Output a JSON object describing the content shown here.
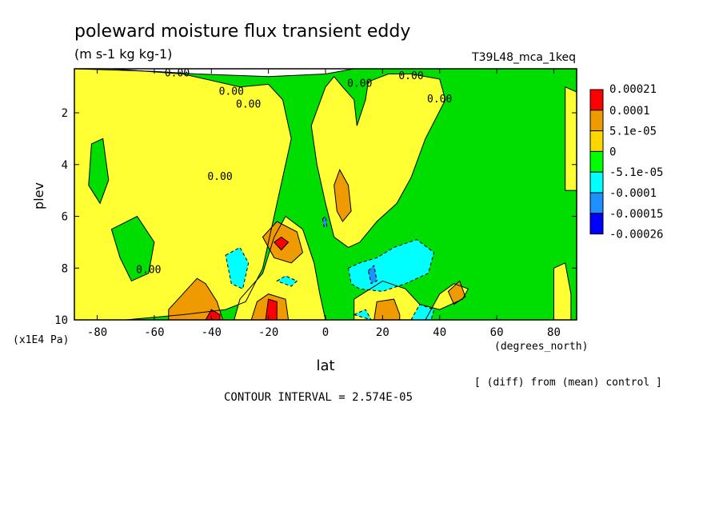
{
  "chart_data": {
    "type": "contour",
    "title": "poleward moisture flux transient eddy",
    "units": "(m s-1 kg kg-1)",
    "run_label": "T39L48_mca_1keq",
    "xlabel": "lat",
    "x_units": "(degrees_north)",
    "ylabel": "plev",
    "y_units": "(x1E4 Pa)",
    "x_ticks": [
      "-80",
      "-60",
      "-40",
      "-20",
      "0",
      "20",
      "40",
      "60",
      "80"
    ],
    "y_ticks": [
      "2",
      "4",
      "6",
      "8",
      "10"
    ],
    "xlim": [
      -88,
      88
    ],
    "ylim": [
      10,
      0.3
    ],
    "contour_interval_text": "CONTOUR INTERVAL = 2.574E-05",
    "note": "[ (diff) from (mean) control ]",
    "contour_labels": [
      "0.00",
      "0.00",
      "0.00",
      "0.00",
      "0.00",
      "0.00",
      "0.00",
      "0.00"
    ],
    "colorbar": {
      "labels": [
        "0.00021",
        "0.0001",
        "5.1e-05",
        "0",
        "-5.1e-05",
        "-0.0001",
        "-0.00015",
        "-0.00026"
      ],
      "colors": [
        "#ff0000",
        "#ee9a00",
        "#ffd700",
        "#00ff00",
        "#00ffff",
        "#1e90ff",
        "#0000ff"
      ]
    },
    "regions": [
      {
        "level": "green",
        "color": "#00dd00",
        "points": [
          [
            -88,
            0.3
          ],
          [
            -60,
            0.4
          ],
          [
            -45,
            0.5
          ],
          [
            -20,
            0.6
          ],
          [
            0,
            0.5
          ],
          [
            10,
            0.3
          ],
          [
            88,
            0.3
          ],
          [
            88,
            10
          ],
          [
            -88,
            10
          ]
        ]
      },
      {
        "level": "yellow",
        "color": "#ffff33",
        "points": [
          [
            -88,
            0.3
          ],
          [
            -75,
            0.3
          ],
          [
            -50,
            0.5
          ],
          [
            -30,
            1.0
          ],
          [
            -20,
            0.9
          ],
          [
            -15,
            1.5
          ],
          [
            -12,
            3
          ],
          [
            -16,
            5
          ],
          [
            -22,
            8
          ],
          [
            -28,
            9.3
          ],
          [
            -35,
            9.6
          ],
          [
            -50,
            9.8
          ],
          [
            -70,
            10
          ],
          [
            -88,
            10
          ]
        ]
      },
      {
        "level": "yellow",
        "color": "#ffff33",
        "points": [
          [
            -30,
            9.2
          ],
          [
            -22,
            8.2
          ],
          [
            -18,
            6.8
          ],
          [
            -14,
            6
          ],
          [
            -8,
            6.5
          ],
          [
            -4,
            7.8
          ],
          [
            -2,
            9
          ],
          [
            0,
            10
          ],
          [
            -32,
            10
          ]
        ]
      },
      {
        "level": "yellow",
        "color": "#ffff33",
        "points": [
          [
            -5,
            2.5
          ],
          [
            0,
            1
          ],
          [
            3,
            0.6
          ],
          [
            6,
            1
          ],
          [
            10,
            1.5
          ],
          [
            11,
            2.5
          ],
          [
            14,
            1.5
          ],
          [
            15,
            0.8
          ],
          [
            22,
            0.5
          ],
          [
            30,
            0.5
          ],
          [
            40,
            0.7
          ],
          [
            42,
            1.5
          ],
          [
            35,
            3
          ],
          [
            30,
            4.5
          ],
          [
            25,
            5.5
          ],
          [
            18,
            6.2
          ],
          [
            12,
            7
          ],
          [
            8,
            7.2
          ],
          [
            3,
            6.8
          ],
          [
            0,
            5.5
          ],
          [
            -3,
            4
          ]
        ]
      },
      {
        "level": "yellow",
        "color": "#ffff33",
        "points": [
          [
            10,
            9.2
          ],
          [
            20,
            8.5
          ],
          [
            28,
            8.8
          ],
          [
            33,
            9.4
          ],
          [
            40,
            9.6
          ],
          [
            48,
            9.2
          ],
          [
            50,
            8.8
          ],
          [
            45,
            8.6
          ],
          [
            40,
            9
          ],
          [
            35,
            10
          ],
          [
            10,
            10
          ]
        ]
      },
      {
        "level": "yellow",
        "color": "#ffff33",
        "points": [
          [
            80,
            8
          ],
          [
            84,
            7.8
          ],
          [
            86,
            9
          ],
          [
            86,
            10
          ],
          [
            80,
            10
          ]
        ]
      },
      {
        "level": "yellow",
        "color": "#ffff33",
        "points": [
          [
            84,
            1
          ],
          [
            88,
            1.2
          ],
          [
            88,
            5
          ],
          [
            84,
            5
          ]
        ]
      },
      {
        "level": "green",
        "color": "#00dd00",
        "points": [
          [
            -75,
            6.5
          ],
          [
            -66,
            6
          ],
          [
            -60,
            7
          ],
          [
            -62,
            8.2
          ],
          [
            -68,
            8.5
          ],
          [
            -72,
            7.6
          ]
        ]
      },
      {
        "level": "green",
        "color": "#00dd00",
        "points": [
          [
            -82,
            3.2
          ],
          [
            -78,
            3
          ],
          [
            -76,
            4.6
          ],
          [
            -79,
            5.5
          ],
          [
            -83,
            4.8
          ]
        ]
      },
      {
        "level": "orange",
        "color": "#ee9a00",
        "points": [
          [
            -55,
            9.6
          ],
          [
            -50,
            9
          ],
          [
            -45,
            8.4
          ],
          [
            -42,
            8.6
          ],
          [
            -38,
            9.3
          ],
          [
            -36,
            10
          ],
          [
            -55,
            10
          ]
        ]
      },
      {
        "level": "orange",
        "color": "#ee9a00",
        "points": [
          [
            -26,
            10
          ],
          [
            -24,
            9.3
          ],
          [
            -20,
            9
          ],
          [
            -14,
            9.2
          ],
          [
            -13,
            10
          ]
        ]
      },
      {
        "level": "orange",
        "color": "#ee9a00",
        "points": [
          [
            -22,
            6.8
          ],
          [
            -17,
            6.2
          ],
          [
            -10,
            6.6
          ],
          [
            -8,
            7.4
          ],
          [
            -12,
            7.8
          ],
          [
            -18,
            7.6
          ]
        ]
      },
      {
        "level": "orange",
        "color": "#ee9a00",
        "points": [
          [
            3,
            4.8
          ],
          [
            5,
            4.2
          ],
          [
            8,
            4.8
          ],
          [
            9,
            5.8
          ],
          [
            6,
            6.2
          ],
          [
            4,
            5.8
          ]
        ]
      },
      {
        "level": "orange",
        "color": "#ee9a00",
        "points": [
          [
            17,
            10
          ],
          [
            18,
            9.3
          ],
          [
            24,
            9.2
          ],
          [
            26,
            9.8
          ],
          [
            26,
            10
          ]
        ]
      },
      {
        "level": "orange",
        "color": "#ee9a00",
        "points": [
          [
            43,
            8.9
          ],
          [
            47,
            8.5
          ],
          [
            49,
            9.1
          ],
          [
            45,
            9.4
          ]
        ]
      },
      {
        "level": "red",
        "color": "#ff0000",
        "points": [
          [
            -18,
            7
          ],
          [
            -15.5,
            6.8
          ],
          [
            -13,
            7
          ],
          [
            -15.5,
            7.3
          ]
        ]
      },
      {
        "level": "red",
        "color": "#ff0000",
        "points": [
          [
            -21,
            10
          ],
          [
            -20,
            9.2
          ],
          [
            -17,
            9.3
          ],
          [
            -17,
            10
          ]
        ]
      },
      {
        "level": "red",
        "color": "#ff0000",
        "points": [
          [
            -42,
            10
          ],
          [
            -40,
            9.6
          ],
          [
            -37,
            9.8
          ],
          [
            -37,
            10
          ]
        ]
      },
      {
        "level": "cyan",
        "color": "#00ffff",
        "points": [
          [
            -35,
            7.5
          ],
          [
            -30,
            7.2
          ],
          [
            -27,
            7.8
          ],
          [
            -29,
            8.8
          ],
          [
            -33,
            8.6
          ]
        ]
      },
      {
        "level": "cyan",
        "color": "#00ffff",
        "points": [
          [
            -17,
            8.5
          ],
          [
            -14,
            8.3
          ],
          [
            -10,
            8.5
          ],
          [
            -12,
            8.7
          ]
        ]
      },
      {
        "level": "cyan",
        "color": "#00ffff",
        "points": [
          [
            8,
            8
          ],
          [
            12,
            7.8
          ],
          [
            18,
            7.6
          ],
          [
            24,
            7.2
          ],
          [
            32,
            6.9
          ],
          [
            38,
            7.4
          ],
          [
            36,
            8.2
          ],
          [
            28,
            8.6
          ],
          [
            20,
            8.9
          ],
          [
            12,
            8.8
          ],
          [
            9,
            8.6
          ]
        ]
      },
      {
        "level": "cyan",
        "color": "#00ffff",
        "points": [
          [
            10,
            9.8
          ],
          [
            14,
            9.6
          ],
          [
            16,
            10
          ]
        ]
      },
      {
        "level": "cyan",
        "color": "#00ffff",
        "points": [
          [
            30,
            10
          ],
          [
            33,
            9.4
          ],
          [
            38,
            9.6
          ],
          [
            37,
            10
          ]
        ]
      },
      {
        "level": "blue",
        "color": "#1e90ff",
        "points": [
          [
            15,
            8.1
          ],
          [
            17,
            7.9
          ],
          [
            18,
            8.5
          ],
          [
            16,
            8.6
          ]
        ]
      },
      {
        "level": "blue",
        "color": "#1e90ff",
        "points": [
          [
            -1,
            6.1
          ],
          [
            0,
            6
          ],
          [
            0.5,
            6.4
          ],
          [
            -0.5,
            6.4
          ]
        ]
      }
    ]
  }
}
